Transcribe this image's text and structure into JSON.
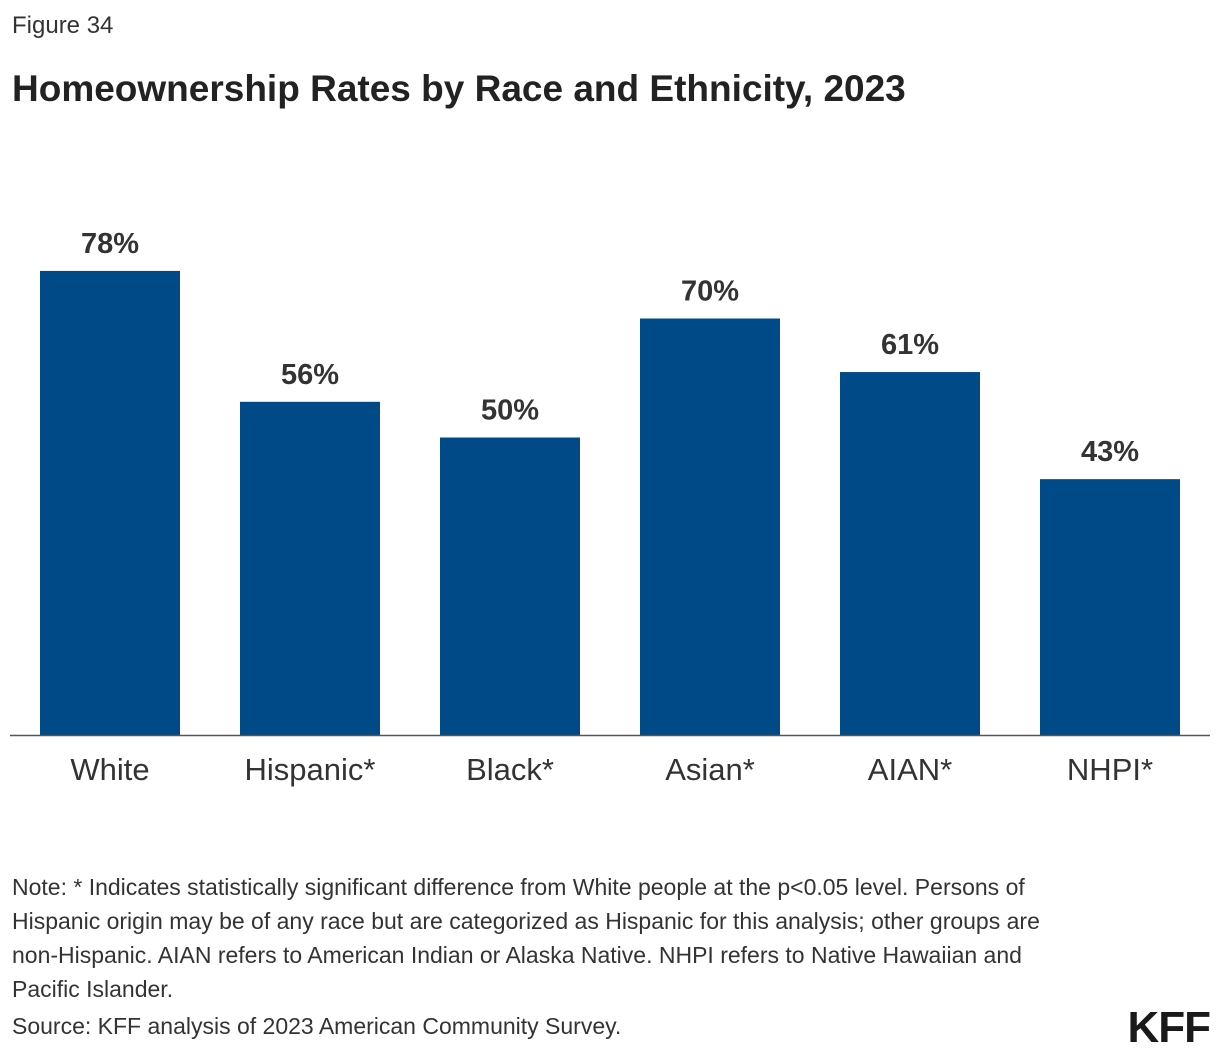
{
  "figure_label": "Figure 34",
  "chart_data": {
    "type": "bar",
    "title": "Homeownership Rates by Race and Ethnicity, 2023",
    "categories": [
      "White",
      "Hispanic*",
      "Black*",
      "Asian*",
      "AIAN*",
      "NHPI*"
    ],
    "values": [
      78,
      56,
      50,
      70,
      61,
      43
    ],
    "data_labels": [
      "78%",
      "56%",
      "50%",
      "70%",
      "61%",
      "43%"
    ],
    "ylim": [
      0,
      100
    ],
    "grid": false,
    "bar_color": "#004a87"
  },
  "note": "Note: * Indicates statistically significant difference from White people at the p<0.05 level. Persons of Hispanic origin may be of any race but are categorized as Hispanic for this analysis; other groups are non-Hispanic. AIAN refers to American Indian or Alaska Native. NHPI refers to Native Hawaiian and Pacific Islander.",
  "source": "Source: KFF analysis of 2023 American Community Survey.",
  "logo": "KFF"
}
